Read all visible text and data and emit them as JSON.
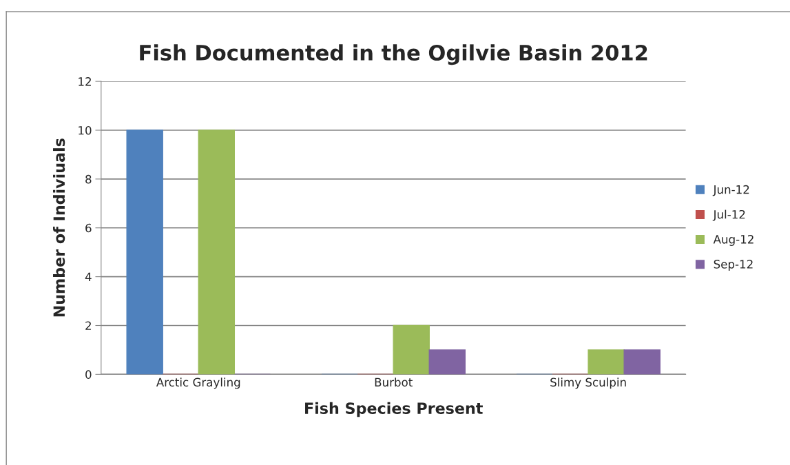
{
  "chart_data": {
    "type": "bar",
    "title": "Fish Documented in the Ogilvie Basin 2012",
    "xlabel": "Fish Species Present",
    "ylabel": "Number of Indiviuals",
    "categories": [
      "Arctic Grayling",
      "Burbot",
      "Slimy Sculpin"
    ],
    "series": [
      {
        "name": "Jun-12",
        "color": "#4f81bd",
        "values": [
          10,
          0,
          0
        ]
      },
      {
        "name": "Jul-12",
        "color": "#c0504d",
        "values": [
          0,
          0,
          0
        ]
      },
      {
        "name": "Aug-12",
        "color": "#9bbb59",
        "values": [
          10,
          2,
          1
        ]
      },
      {
        "name": "Sep-12",
        "color": "#8064a2",
        "values": [
          0,
          1,
          1
        ]
      }
    ],
    "ylim": [
      0,
      12
    ],
    "yticks": [
      0,
      2,
      4,
      6,
      8,
      10,
      12
    ],
    "grid": "y",
    "legend": "right"
  }
}
